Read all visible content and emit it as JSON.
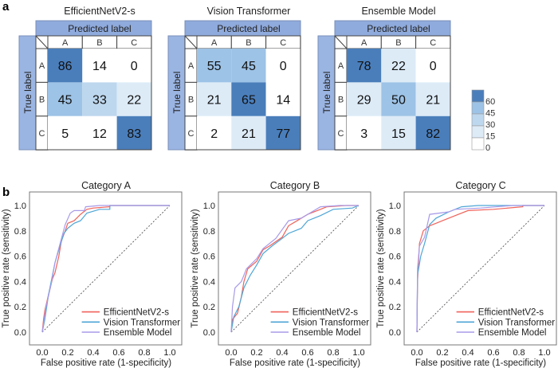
{
  "panel_a": "a",
  "panel_b": "b",
  "chart_data": [
    {
      "type": "heatmap",
      "title": "EfficientNetV2-s",
      "xlabel": "Predicted label",
      "ylabel": "True label",
      "x_categories": [
        "A",
        "B",
        "C"
      ],
      "y_categories": [
        "A",
        "B",
        "C"
      ],
      "values": [
        [
          86,
          14,
          0
        ],
        [
          45,
          33,
          22
        ],
        [
          5,
          12,
          83
        ]
      ]
    },
    {
      "type": "heatmap",
      "title": "Vision Transformer",
      "xlabel": "Predicted label",
      "ylabel": "True label",
      "x_categories": [
        "A",
        "B",
        "C"
      ],
      "y_categories": [
        "A",
        "B",
        "C"
      ],
      "values": [
        [
          55,
          45,
          0
        ],
        [
          21,
          65,
          14
        ],
        [
          2,
          21,
          77
        ]
      ]
    },
    {
      "type": "heatmap",
      "title": "Ensemble Model",
      "xlabel": "Predicted label",
      "ylabel": "True label",
      "x_categories": [
        "A",
        "B",
        "C"
      ],
      "y_categories": [
        "A",
        "B",
        "C"
      ],
      "values": [
        [
          78,
          22,
          0
        ],
        [
          29,
          50,
          21
        ],
        [
          3,
          15,
          82
        ]
      ]
    },
    {
      "type": "colorbar",
      "ticks": [
        "60",
        "45",
        "30",
        "15",
        "0"
      ],
      "colors": [
        "#4a7ebb",
        "#9dc3e6",
        "#bdd7ee",
        "#ddebf7",
        "#ffffff"
      ]
    },
    {
      "type": "line",
      "title": "Category A",
      "xlabel": "False positive rate (1-specificity)",
      "ylabel": "True positive rate (sensitivity)",
      "xlim": [
        0,
        1
      ],
      "ylim": [
        0,
        1
      ],
      "xticks": [
        "0.0",
        "0.2",
        "0.4",
        "0.6",
        "0.8",
        "1.0"
      ],
      "yticks": [
        "0.0",
        "0.2",
        "0.4",
        "0.6",
        "0.8",
        "1.0"
      ],
      "legend": "bottom-right",
      "series": [
        {
          "name": "EfficientNetV2-s",
          "color": "#f0625a",
          "points": [
            [
              0,
              0
            ],
            [
              0.01,
              0.1
            ],
            [
              0.02,
              0.17
            ],
            [
              0.05,
              0.3
            ],
            [
              0.08,
              0.42
            ],
            [
              0.1,
              0.47
            ],
            [
              0.13,
              0.6
            ],
            [
              0.15,
              0.72
            ],
            [
              0.18,
              0.8
            ],
            [
              0.2,
              0.86
            ],
            [
              0.25,
              0.88
            ],
            [
              0.3,
              0.93
            ],
            [
              0.35,
              0.97
            ],
            [
              0.4,
              0.98
            ],
            [
              0.53,
              0.99
            ],
            [
              0.53,
              1
            ],
            [
              1,
              1
            ]
          ]
        },
        {
          "name": "Vision Transformer",
          "color": "#4ea6d6",
          "points": [
            [
              0,
              0
            ],
            [
              0.02,
              0.1
            ],
            [
              0.05,
              0.3
            ],
            [
              0.1,
              0.55
            ],
            [
              0.13,
              0.65
            ],
            [
              0.17,
              0.78
            ],
            [
              0.2,
              0.82
            ],
            [
              0.25,
              0.86
            ],
            [
              0.3,
              0.88
            ],
            [
              0.35,
              0.94
            ],
            [
              0.45,
              0.97
            ],
            [
              0.53,
              0.97
            ],
            [
              0.53,
              1
            ],
            [
              1,
              1
            ]
          ]
        },
        {
          "name": "Ensemble Model",
          "color": "#a89ae8",
          "points": [
            [
              0,
              0
            ],
            [
              0.03,
              0.2
            ],
            [
              0.07,
              0.38
            ],
            [
              0.1,
              0.55
            ],
            [
              0.14,
              0.7
            ],
            [
              0.18,
              0.85
            ],
            [
              0.22,
              0.94
            ],
            [
              0.25,
              0.96
            ],
            [
              0.33,
              0.96
            ],
            [
              0.34,
              0.99
            ],
            [
              0.45,
              1
            ],
            [
              1,
              1
            ]
          ]
        }
      ]
    },
    {
      "type": "line",
      "title": "Category B",
      "xlabel": "False positive rate (1-specificity)",
      "ylabel": "True positive rate (sensitivity)",
      "xlim": [
        0,
        1
      ],
      "ylim": [
        0,
        1
      ],
      "xticks": [
        "0.0",
        "0.2",
        "0.4",
        "0.6",
        "0.8",
        "1.0"
      ],
      "yticks": [
        "0.0",
        "0.2",
        "0.4",
        "0.6",
        "0.8",
        "1.0"
      ],
      "legend": "bottom-right",
      "series": [
        {
          "name": "EfficientNetV2-s",
          "color": "#f0625a",
          "points": [
            [
              0,
              0
            ],
            [
              0.01,
              0.1
            ],
            [
              0.05,
              0.15
            ],
            [
              0.08,
              0.28
            ],
            [
              0.1,
              0.4
            ],
            [
              0.13,
              0.5
            ],
            [
              0.2,
              0.56
            ],
            [
              0.25,
              0.65
            ],
            [
              0.3,
              0.68
            ],
            [
              0.4,
              0.75
            ],
            [
              0.45,
              0.84
            ],
            [
              0.5,
              0.87
            ],
            [
              0.6,
              0.93
            ],
            [
              0.7,
              0.97
            ],
            [
              0.75,
              0.99
            ],
            [
              0.9,
              1
            ],
            [
              1,
              1
            ]
          ]
        },
        {
          "name": "Vision Transformer",
          "color": "#4ea6d6",
          "points": [
            [
              0,
              0
            ],
            [
              0.02,
              0.12
            ],
            [
              0.06,
              0.2
            ],
            [
              0.1,
              0.35
            ],
            [
              0.15,
              0.45
            ],
            [
              0.2,
              0.53
            ],
            [
              0.25,
              0.62
            ],
            [
              0.32,
              0.68
            ],
            [
              0.4,
              0.74
            ],
            [
              0.45,
              0.78
            ],
            [
              0.55,
              0.82
            ],
            [
              0.6,
              0.88
            ],
            [
              0.7,
              0.92
            ],
            [
              0.8,
              0.97
            ],
            [
              0.95,
              0.98
            ],
            [
              1,
              1
            ]
          ]
        },
        {
          "name": "Ensemble Model",
          "color": "#a89ae8",
          "points": [
            [
              0,
              0
            ],
            [
              0.01,
              0.2
            ],
            [
              0.03,
              0.35
            ],
            [
              0.08,
              0.4
            ],
            [
              0.12,
              0.5
            ],
            [
              0.2,
              0.58
            ],
            [
              0.25,
              0.66
            ],
            [
              0.35,
              0.74
            ],
            [
              0.45,
              0.88
            ],
            [
              0.55,
              0.9
            ],
            [
              0.65,
              0.96
            ],
            [
              0.7,
              0.99
            ],
            [
              0.85,
              1
            ],
            [
              1,
              1
            ]
          ]
        }
      ]
    },
    {
      "type": "line",
      "title": "Category C",
      "xlabel": "False positive rate (1-specificity)",
      "ylabel": "True positive rate (sensitivity)",
      "xlim": [
        0,
        1
      ],
      "ylim": [
        0,
        1
      ],
      "xticks": [
        "0.0",
        "0.2",
        "0.4",
        "0.6",
        "0.8",
        "1.0"
      ],
      "yticks": [
        "0.0",
        "0.2",
        "0.4",
        "0.6",
        "0.8",
        "1.0"
      ],
      "legend": "bottom-right",
      "series": [
        {
          "name": "EfficientNetV2-s",
          "color": "#f0625a",
          "points": [
            [
              0,
              0
            ],
            [
              0.005,
              0.4
            ],
            [
              0.02,
              0.7
            ],
            [
              0.05,
              0.8
            ],
            [
              0.1,
              0.84
            ],
            [
              0.15,
              0.86
            ],
            [
              0.2,
              0.88
            ],
            [
              0.3,
              0.92
            ],
            [
              0.4,
              0.96
            ],
            [
              0.6,
              0.97
            ],
            [
              0.83,
              0.99
            ],
            [
              0.83,
              1
            ],
            [
              1,
              1
            ]
          ]
        },
        {
          "name": "Vision Transformer",
          "color": "#4ea6d6",
          "points": [
            [
              0,
              0
            ],
            [
              0.005,
              0.45
            ],
            [
              0.03,
              0.6
            ],
            [
              0.06,
              0.7
            ],
            [
              0.1,
              0.85
            ],
            [
              0.15,
              0.9
            ],
            [
              0.25,
              0.95
            ],
            [
              0.35,
              0.99
            ],
            [
              0.48,
              1
            ],
            [
              1,
              1
            ]
          ]
        },
        {
          "name": "Ensemble Model",
          "color": "#a89ae8",
          "points": [
            [
              0,
              0
            ],
            [
              0.005,
              0.5
            ],
            [
              0.02,
              0.68
            ],
            [
              0.06,
              0.75
            ],
            [
              0.1,
              0.93
            ],
            [
              0.25,
              0.95
            ],
            [
              0.3,
              0.97
            ],
            [
              0.5,
              0.98
            ],
            [
              0.75,
              1
            ],
            [
              1,
              1
            ]
          ]
        }
      ]
    }
  ]
}
